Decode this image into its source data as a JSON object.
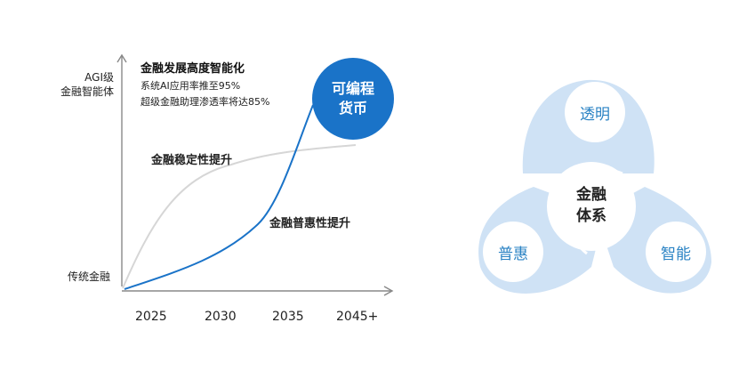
{
  "left_chart": {
    "y_axis_top_label": [
      "AGI级",
      "金融智能体"
    ],
    "y_axis_bottom_label": "传统金融",
    "x_ticks": [
      "2025",
      "2030",
      "2035",
      "2045+"
    ],
    "annotation": {
      "title": "金融发展高度智能化",
      "lines": [
        "系统AI应用率推至95%",
        "超级金融助理渗透率将达85%"
      ]
    },
    "series_labels": {
      "gray": "金融稳定性提升",
      "blue": "金融普惠性提升"
    },
    "bubble_lines": [
      "可编程",
      "货币"
    ],
    "colors": {
      "blue_curve": "#1a73c8",
      "gray_curve": "#d6d6d6",
      "bubble": "#1a73c8",
      "axis": "#888888"
    }
  },
  "right_diagram": {
    "center_lines": [
      "金融",
      "体系"
    ],
    "nodes": {
      "top": "透明",
      "left": "普惠",
      "right": "智能"
    },
    "colors": {
      "petal": "#cfe2f5",
      "node_fill": "#ffffff",
      "node_text": "#2b83c4"
    }
  }
}
